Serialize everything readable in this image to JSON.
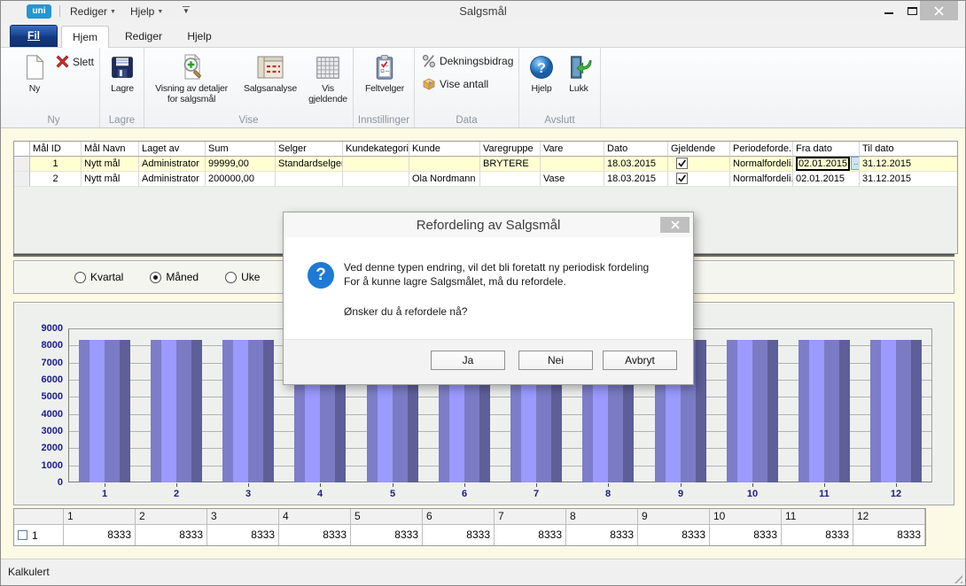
{
  "window": {
    "title": "Salgsmål",
    "logo": "uni",
    "menus": [
      "Rediger",
      "Hjelp"
    ]
  },
  "tabs": {
    "file": "Fil",
    "items": [
      "Hjem",
      "Rediger",
      "Hjelp"
    ],
    "active": "Hjem"
  },
  "ribbon": {
    "groups": [
      {
        "label": "Ny",
        "buttons": [
          {
            "lines": [
              "Ny"
            ],
            "icon": "new-document-icon"
          },
          {
            "lines": [
              "Slett"
            ],
            "icon": "delete-icon"
          }
        ]
      },
      {
        "label": "Lagre",
        "buttons": [
          {
            "lines": [
              "Lagre"
            ],
            "icon": "save-icon"
          }
        ]
      },
      {
        "label": "Vise",
        "buttons": [
          {
            "lines": [
              "Visning av detaljer",
              "for salgsmål"
            ],
            "icon": "view-details-icon"
          },
          {
            "lines": [
              "Salgsanalyse"
            ],
            "icon": "sales-analysis-icon"
          },
          {
            "lines": [
              "Vis",
              "gjeldende"
            ],
            "icon": "show-current-grid-icon"
          }
        ]
      },
      {
        "label": "Innstillinger",
        "buttons": [
          {
            "lines": [
              "Feltvelger"
            ],
            "icon": "field-picker-icon"
          }
        ]
      },
      {
        "label": "Data",
        "buttons": [
          {
            "lines": [
              "Dekningsbidrag"
            ],
            "icon": "percent-icon"
          },
          {
            "lines": [
              "Vise antall"
            ],
            "icon": "quantity-box-icon"
          }
        ]
      },
      {
        "label": "Avslutt",
        "buttons": [
          {
            "lines": [
              "Hjelp"
            ],
            "icon": "help-icon"
          },
          {
            "lines": [
              "Lukk"
            ],
            "icon": "exit-door-icon"
          }
        ]
      }
    ]
  },
  "grid": {
    "date_picker_button": "...",
    "columns": [
      {
        "key": "mal_id",
        "label": "Mål ID"
      },
      {
        "key": "mal_navn",
        "label": "Mål Navn"
      },
      {
        "key": "laget_av",
        "label": "Laget av"
      },
      {
        "key": "sum",
        "label": "Sum"
      },
      {
        "key": "selger",
        "label": "Selger"
      },
      {
        "key": "kundekategori",
        "label": "Kundekategori"
      },
      {
        "key": "kunde",
        "label": "Kunde"
      },
      {
        "key": "varegruppe",
        "label": "Varegruppe"
      },
      {
        "key": "vare",
        "label": "Vare"
      },
      {
        "key": "dato",
        "label": "Dato"
      },
      {
        "key": "gjeldende",
        "label": "Gjeldende"
      },
      {
        "key": "periodefordeling",
        "label": "Periodeforde..."
      },
      {
        "key": "fra_dato",
        "label": "Fra dato"
      },
      {
        "key": "til_dato",
        "label": "Til dato"
      }
    ],
    "rows": [
      {
        "selected": true,
        "mal_id": "1",
        "mal_navn": "Nytt mål",
        "laget_av": "Administrator",
        "sum": "99999,00",
        "selger": "Standardselger",
        "kundekategori": "",
        "kunde": "",
        "varegruppe": "BRYTERE",
        "vare": "",
        "dato": "18.03.2015",
        "gjeldende": true,
        "periodefordeling": "Normalfordeli...",
        "fra_dato": "02.01.2015",
        "fra_dato_focused": true,
        "til_dato": "31.12.2015"
      },
      {
        "selected": false,
        "mal_id": "2",
        "mal_navn": "Nytt mål",
        "laget_av": "Administrator",
        "sum": "200000,00",
        "selger": "",
        "kundekategori": "",
        "kunde": "Ola Nordmann",
        "varegruppe": "",
        "vare": "Vase",
        "dato": "18.03.2015",
        "gjeldende": true,
        "periodefordeling": "Normalfordeli...",
        "fra_dato": "02.01.2015",
        "fra_dato_focused": false,
        "til_dato": "31.12.2015"
      }
    ]
  },
  "period_options": [
    {
      "label": "Kvartal",
      "selected": false
    },
    {
      "label": "Måned",
      "selected": true
    },
    {
      "label": "Uke",
      "selected": false
    }
  ],
  "chart_data": {
    "type": "bar",
    "categories": [
      "1",
      "2",
      "3",
      "4",
      "5",
      "6",
      "7",
      "8",
      "9",
      "10",
      "11",
      "12"
    ],
    "values": [
      8333,
      8333,
      8333,
      8333,
      8333,
      8333,
      8333,
      8333,
      8333,
      8333,
      8333,
      8333
    ],
    "title": "",
    "xlabel": "",
    "ylabel": "",
    "ylim": [
      0,
      9000
    ],
    "ytick_step": 1000,
    "grid": true,
    "legend": false,
    "bar_stripe_colors": [
      "#7d7dc9",
      "#9a9aff",
      "#7b7bc4",
      "#5e5e99"
    ]
  },
  "bottom_table": {
    "row_id": "1",
    "columns": [
      "1",
      "2",
      "3",
      "4",
      "5",
      "6",
      "7",
      "8",
      "9",
      "10",
      "11",
      "12"
    ],
    "values": [
      8333,
      8333,
      8333,
      8333,
      8333,
      8333,
      8333,
      8333,
      8333,
      8333,
      8333,
      8333
    ]
  },
  "dialog": {
    "title": "Refordeling av Salgsmål",
    "icon": "question-icon",
    "message_line1": "Ved denne typen endring, vil det bli foretatt ny periodisk fordeling",
    "message_line2": "For å kunne lagre Salgsmålet, må du refordele.",
    "question": "Ønsker du å refordele nå?",
    "buttons": [
      "Ja",
      "Nei",
      "Avbryt"
    ]
  },
  "status_bar": {
    "text": "Kalkulert"
  },
  "colors": {
    "client_bg": "#fcfae5",
    "row_highlight": "#ffffd2",
    "fil_tab_blue": "#1c4795",
    "dialog_icon_blue": "#1e7ad4",
    "axis_label_navy": "#1a1a8c"
  }
}
